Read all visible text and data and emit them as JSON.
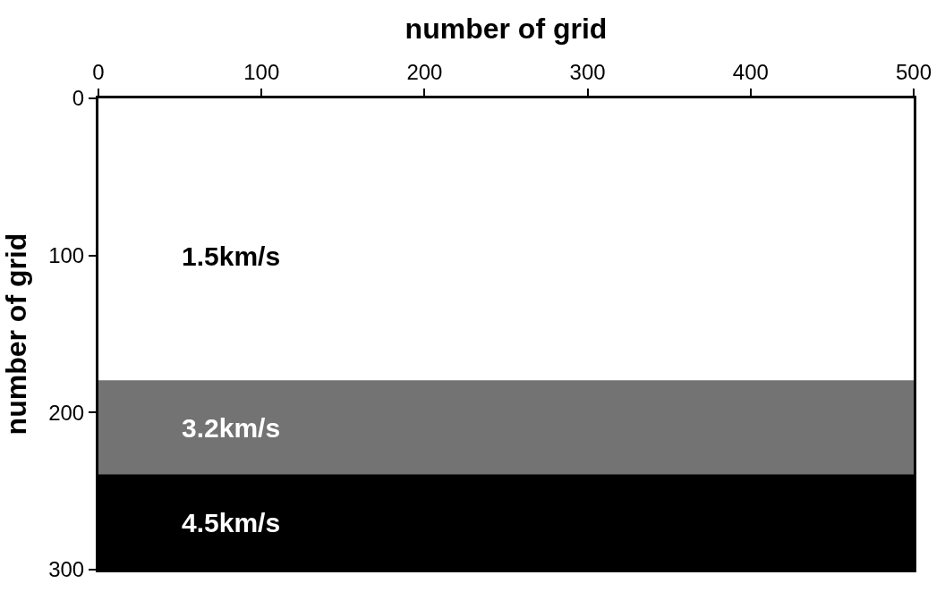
{
  "chart_data": {
    "type": "line",
    "xlabel": "number of grid",
    "ylabel": "number of grid",
    "x": [
      0,
      500
    ],
    "xlim": [
      0,
      500
    ],
    "xticks": [
      0,
      100,
      200,
      300,
      400,
      500
    ],
    "ylim": [
      300,
      0
    ],
    "yticks": [
      0,
      100,
      200,
      300
    ],
    "series": [
      {
        "color": "#737373",
        "values": [
          180,
          180
        ]
      },
      {
        "color": "#000000",
        "values": [
          240,
          240
        ]
      }
    ],
    "bands": [
      {
        "axis": "y",
        "from": 180,
        "to": 240,
        "label": "3.2km/s",
        "color": "#737373"
      },
      {
        "axis": "y",
        "from": 240,
        "to": 300,
        "label": "4.5km/s",
        "color": "#000000"
      }
    ],
    "annotations": [
      "1.5km/s"
    ],
    "marker": "none",
    "grid": false
  }
}
